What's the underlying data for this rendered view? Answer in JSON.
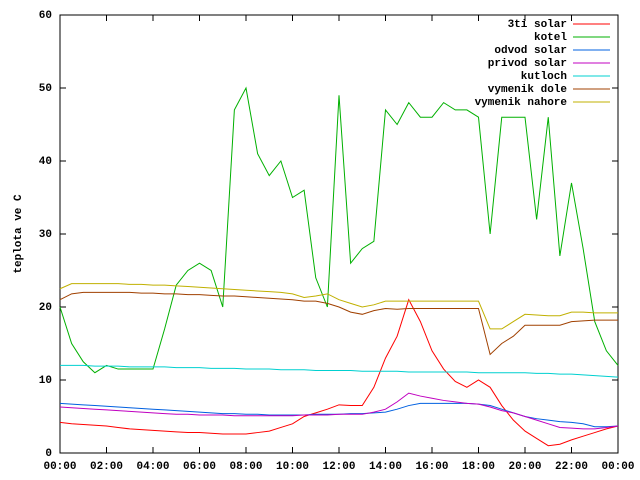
{
  "chart_data": {
    "type": "line",
    "ylabel": "teplota ve C",
    "x": [
      0,
      0.5,
      1,
      1.5,
      2,
      2.5,
      3,
      3.5,
      4,
      4.5,
      5,
      5.5,
      6,
      6.5,
      7,
      7.5,
      8,
      8.5,
      9,
      9.5,
      10,
      10.5,
      11,
      11.5,
      12,
      12.5,
      13,
      13.5,
      14,
      14.5,
      15,
      15.5,
      16,
      16.5,
      17,
      17.5,
      18,
      18.5,
      19,
      19.5,
      20,
      20.5,
      21,
      21.5,
      22,
      22.5,
      23,
      23.5,
      24
    ],
    "xlim": [
      0,
      24
    ],
    "xticks": [
      {
        "value": 0,
        "label": "00:00"
      },
      {
        "value": 2,
        "label": "02:00"
      },
      {
        "value": 4,
        "label": "04:00"
      },
      {
        "value": 6,
        "label": "06:00"
      },
      {
        "value": 8,
        "label": "08:00"
      },
      {
        "value": 10,
        "label": "10:00"
      },
      {
        "value": 12,
        "label": "12:00"
      },
      {
        "value": 14,
        "label": "14:00"
      },
      {
        "value": 16,
        "label": "16:00"
      },
      {
        "value": 18,
        "label": "18:00"
      },
      {
        "value": 20,
        "label": "20:00"
      },
      {
        "value": 22,
        "label": "22:00"
      },
      {
        "value": 24,
        "label": "00:00"
      }
    ],
    "ylim": [
      0,
      60
    ],
    "yticks": [
      0,
      10,
      20,
      30,
      40,
      50,
      60
    ],
    "legend": "top-right",
    "series": [
      {
        "name": "3ti solar",
        "color": "#ff0000",
        "values": [
          4.2,
          4,
          3.9,
          3.8,
          3.7,
          3.5,
          3.3,
          3.2,
          3.1,
          3,
          2.9,
          2.8,
          2.8,
          2.7,
          2.6,
          2.6,
          2.6,
          2.8,
          3,
          3.5,
          4,
          5,
          5.5,
          6,
          6.6,
          6.5,
          6.5,
          9,
          13,
          16,
          21,
          18,
          14,
          11.5,
          9.8,
          9,
          10,
          9,
          6.5,
          4.5,
          3,
          2,
          1,
          1.2,
          1.8,
          2.3,
          2.8,
          3.3,
          3.7
        ]
      },
      {
        "name": "kotel",
        "color": "#00b000",
        "values": [
          20,
          15,
          12.5,
          11,
          12,
          11.5,
          11.5,
          11.5,
          11.5,
          17,
          23,
          25,
          26,
          25,
          20,
          47,
          50,
          41,
          38,
          40,
          35,
          36,
          24,
          20,
          49,
          26,
          28,
          29,
          47,
          45,
          48,
          46,
          46,
          48,
          47,
          47,
          46,
          30,
          46,
          46,
          46,
          32,
          46,
          27,
          37,
          28,
          18,
          14,
          12
        ]
      },
      {
        "name": "odvod solar",
        "color": "#0060e0",
        "values": [
          6.8,
          6.7,
          6.6,
          6.5,
          6.4,
          6.3,
          6.2,
          6.1,
          6,
          5.9,
          5.8,
          5.7,
          5.6,
          5.5,
          5.4,
          5.4,
          5.3,
          5.3,
          5.2,
          5.2,
          5.2,
          5.2,
          5.3,
          5.3,
          5.3,
          5.4,
          5.4,
          5.5,
          5.6,
          6,
          6.5,
          6.8,
          6.8,
          6.8,
          6.8,
          6.8,
          6.7,
          6.5,
          6,
          5.5,
          5,
          4.7,
          4.5,
          4.3,
          4.2,
          4,
          3.6,
          3.6,
          3.7
        ]
      },
      {
        "name": "privod solar",
        "color": "#c000c0",
        "values": [
          6.3,
          6.2,
          6.1,
          6,
          5.9,
          5.8,
          5.7,
          5.6,
          5.5,
          5.4,
          5.3,
          5.3,
          5.2,
          5.2,
          5.2,
          5.1,
          5.1,
          5.1,
          5.1,
          5.1,
          5.1,
          5.2,
          5.2,
          5.2,
          5.3,
          5.3,
          5.3,
          5.6,
          6,
          7,
          8.2,
          7.8,
          7.5,
          7.2,
          7,
          6.8,
          6.7,
          6.3,
          5.8,
          5.5,
          5,
          4.5,
          4,
          3.5,
          3.4,
          3.3,
          3.3,
          3.5,
          3.7
        ]
      },
      {
        "name": "kutloch",
        "color": "#00d0d0",
        "values": [
          12,
          12,
          12,
          11.9,
          11.9,
          11.9,
          11.8,
          11.8,
          11.8,
          11.8,
          11.7,
          11.7,
          11.7,
          11.6,
          11.6,
          11.6,
          11.5,
          11.5,
          11.5,
          11.4,
          11.4,
          11.4,
          11.3,
          11.3,
          11.3,
          11.3,
          11.2,
          11.2,
          11.2,
          11.2,
          11.1,
          11.1,
          11.1,
          11.1,
          11.1,
          11.1,
          11,
          11,
          11,
          11,
          11,
          10.9,
          10.9,
          10.8,
          10.8,
          10.7,
          10.6,
          10.5,
          10.4
        ]
      },
      {
        "name": "vymenik dole",
        "color": "#a04000",
        "values": [
          21,
          21.8,
          22,
          22,
          22,
          22,
          22,
          21.9,
          21.9,
          21.8,
          21.8,
          21.7,
          21.7,
          21.6,
          21.5,
          21.5,
          21.4,
          21.3,
          21.2,
          21.1,
          21,
          20.8,
          20.8,
          20.5,
          20,
          19.3,
          19,
          19.5,
          19.8,
          19.7,
          19.8,
          19.8,
          19.8,
          19.8,
          19.8,
          19.8,
          19.8,
          13.5,
          15,
          16,
          17.5,
          17.5,
          17.5,
          17.5,
          18,
          18.1,
          18.2,
          18.2,
          18.2
        ]
      },
      {
        "name": "vymenik nahore",
        "color": "#c0b000",
        "values": [
          22.5,
          23.2,
          23.2,
          23.2,
          23.2,
          23.2,
          23.1,
          23.1,
          23,
          23,
          22.9,
          22.8,
          22.7,
          22.6,
          22.5,
          22.4,
          22.3,
          22.2,
          22.1,
          22,
          21.8,
          21.3,
          21.5,
          21.8,
          21,
          20.5,
          20,
          20.3,
          20.8,
          20.8,
          20.8,
          20.8,
          20.8,
          20.8,
          20.8,
          20.8,
          20.8,
          17,
          17,
          18,
          19,
          18.9,
          18.8,
          18.8,
          19.3,
          19.3,
          19.2,
          19.2,
          19.2
        ]
      }
    ]
  }
}
